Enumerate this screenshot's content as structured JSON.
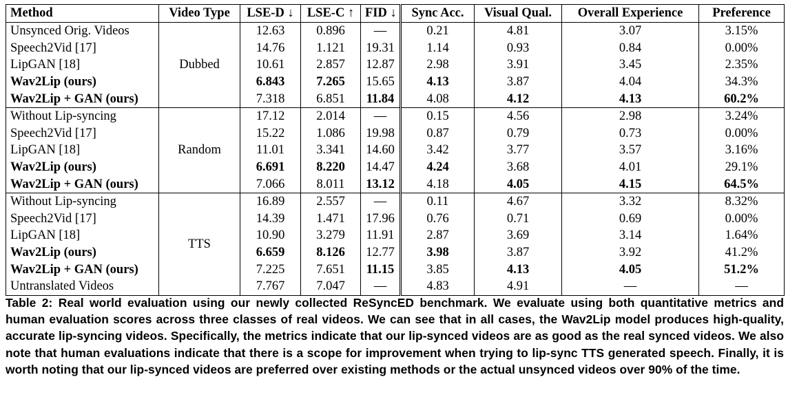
{
  "table": {
    "headers": [
      "Method",
      "Video Type",
      "LSE-D ↓",
      "LSE-C ↑",
      "FID ↓",
      "Sync Acc.",
      "Visual Qual.",
      "Overall Experience",
      "Preference"
    ],
    "groups": [
      {
        "video_type": "Dubbed",
        "rows": [
          {
            "method": "Unsynced Orig. Videos",
            "lse_d": "12.63",
            "lse_c": "0.896",
            "fid": "—",
            "sync": "0.21",
            "visual": "4.81",
            "overall": "3.07",
            "pref": "3.15%",
            "bold": []
          },
          {
            "method": "Speech2Vid [17]",
            "lse_d": "14.76",
            "lse_c": "1.121",
            "fid": "19.31",
            "sync": "1.14",
            "visual": "0.93",
            "overall": "0.84",
            "pref": "0.00%",
            "bold": []
          },
          {
            "method": "LipGAN [18]",
            "lse_d": "10.61",
            "lse_c": "2.857",
            "fid": "12.87",
            "sync": "2.98",
            "visual": "3.91",
            "overall": "3.45",
            "pref": "2.35%",
            "bold": []
          },
          {
            "method": "Wav2Lip (ours)",
            "lse_d": "6.843",
            "lse_c": "7.265",
            "fid": "15.65",
            "sync": "4.13",
            "visual": "3.87",
            "overall": "4.04",
            "pref": "34.3%",
            "bold": [
              "method",
              "lse_d",
              "lse_c",
              "sync"
            ]
          },
          {
            "method": "Wav2Lip + GAN (ours)",
            "lse_d": "7.318",
            "lse_c": "6.851",
            "fid": "11.84",
            "sync": "4.08",
            "visual": "4.12",
            "overall": "4.13",
            "pref": "60.2%",
            "bold": [
              "method",
              "fid",
              "visual",
              "overall",
              "pref"
            ]
          }
        ]
      },
      {
        "video_type": "Random",
        "rows": [
          {
            "method": "Without Lip-syncing",
            "lse_d": "17.12",
            "lse_c": "2.014",
            "fid": "—",
            "sync": "0.15",
            "visual": "4.56",
            "overall": "2.98",
            "pref": "3.24%",
            "bold": []
          },
          {
            "method": "Speech2Vid [17]",
            "lse_d": "15.22",
            "lse_c": "1.086",
            "fid": "19.98",
            "sync": "0.87",
            "visual": "0.79",
            "overall": "0.73",
            "pref": "0.00%",
            "bold": []
          },
          {
            "method": "LipGAN [18]",
            "lse_d": "11.01",
            "lse_c": "3.341",
            "fid": "14.60",
            "sync": "3.42",
            "visual": "3.77",
            "overall": "3.57",
            "pref": "3.16%",
            "bold": []
          },
          {
            "method": "Wav2Lip (ours)",
            "lse_d": "6.691",
            "lse_c": "8.220",
            "fid": "14.47",
            "sync": "4.24",
            "visual": "3.68",
            "overall": "4.01",
            "pref": "29.1%",
            "bold": [
              "method",
              "lse_d",
              "lse_c",
              "sync"
            ]
          },
          {
            "method": "Wav2Lip + GAN (ours)",
            "lse_d": "7.066",
            "lse_c": "8.011",
            "fid": "13.12",
            "sync": "4.18",
            "visual": "4.05",
            "overall": "4.15",
            "pref": "64.5%",
            "bold": [
              "method",
              "fid",
              "visual",
              "overall",
              "pref"
            ]
          }
        ]
      },
      {
        "video_type": "TTS",
        "rows": [
          {
            "method": "Without Lip-syncing",
            "lse_d": "16.89",
            "lse_c": "2.557",
            "fid": "—",
            "sync": "0.11",
            "visual": "4.67",
            "overall": "3.32",
            "pref": "8.32%",
            "bold": []
          },
          {
            "method": "Speech2Vid [17]",
            "lse_d": "14.39",
            "lse_c": "1.471",
            "fid": "17.96",
            "sync": "0.76",
            "visual": "0.71",
            "overall": "0.69",
            "pref": "0.00%",
            "bold": []
          },
          {
            "method": "LipGAN [18]",
            "lse_d": "10.90",
            "lse_c": "3.279",
            "fid": "11.91",
            "sync": "2.87",
            "visual": "3.69",
            "overall": "3.14",
            "pref": "1.64%",
            "bold": []
          },
          {
            "method": "Wav2Lip (ours)",
            "lse_d": "6.659",
            "lse_c": "8.126",
            "fid": "12.77",
            "sync": "3.98",
            "visual": "3.87",
            "overall": "3.92",
            "pref": "41.2%",
            "bold": [
              "method",
              "lse_d",
              "lse_c",
              "sync"
            ]
          },
          {
            "method": "Wav2Lip + GAN (ours)",
            "lse_d": "7.225",
            "lse_c": "7.651",
            "fid": "11.15",
            "sync": "3.85",
            "visual": "4.13",
            "overall": "4.05",
            "pref": "51.2%",
            "bold": [
              "method",
              "fid",
              "visual",
              "overall",
              "pref"
            ]
          },
          {
            "method": "Untranslated Videos",
            "lse_d": "7.767",
            "lse_c": "7.047",
            "fid": "—",
            "sync": "4.83",
            "visual": "4.91",
            "overall": "—",
            "pref": "—",
            "bold": []
          }
        ]
      }
    ]
  },
  "caption": "Table 2: Real world evaluation using our newly collected ReSyncED benchmark. We evaluate using both quantitative metrics and human evaluation scores across three classes of real videos. We can see that in all cases, the Wav2Lip model produces high-quality, accurate lip-syncing videos. Specifically, the metrics indicate that our lip-synced videos are as good as the real synced videos. We also note that human evaluations indicate that there is a scope for improvement when trying to lip-sync TTS generated speech. Finally, it is worth noting that our lip-synced videos are preferred over existing methods or the actual unsynced videos over 90% of the time."
}
